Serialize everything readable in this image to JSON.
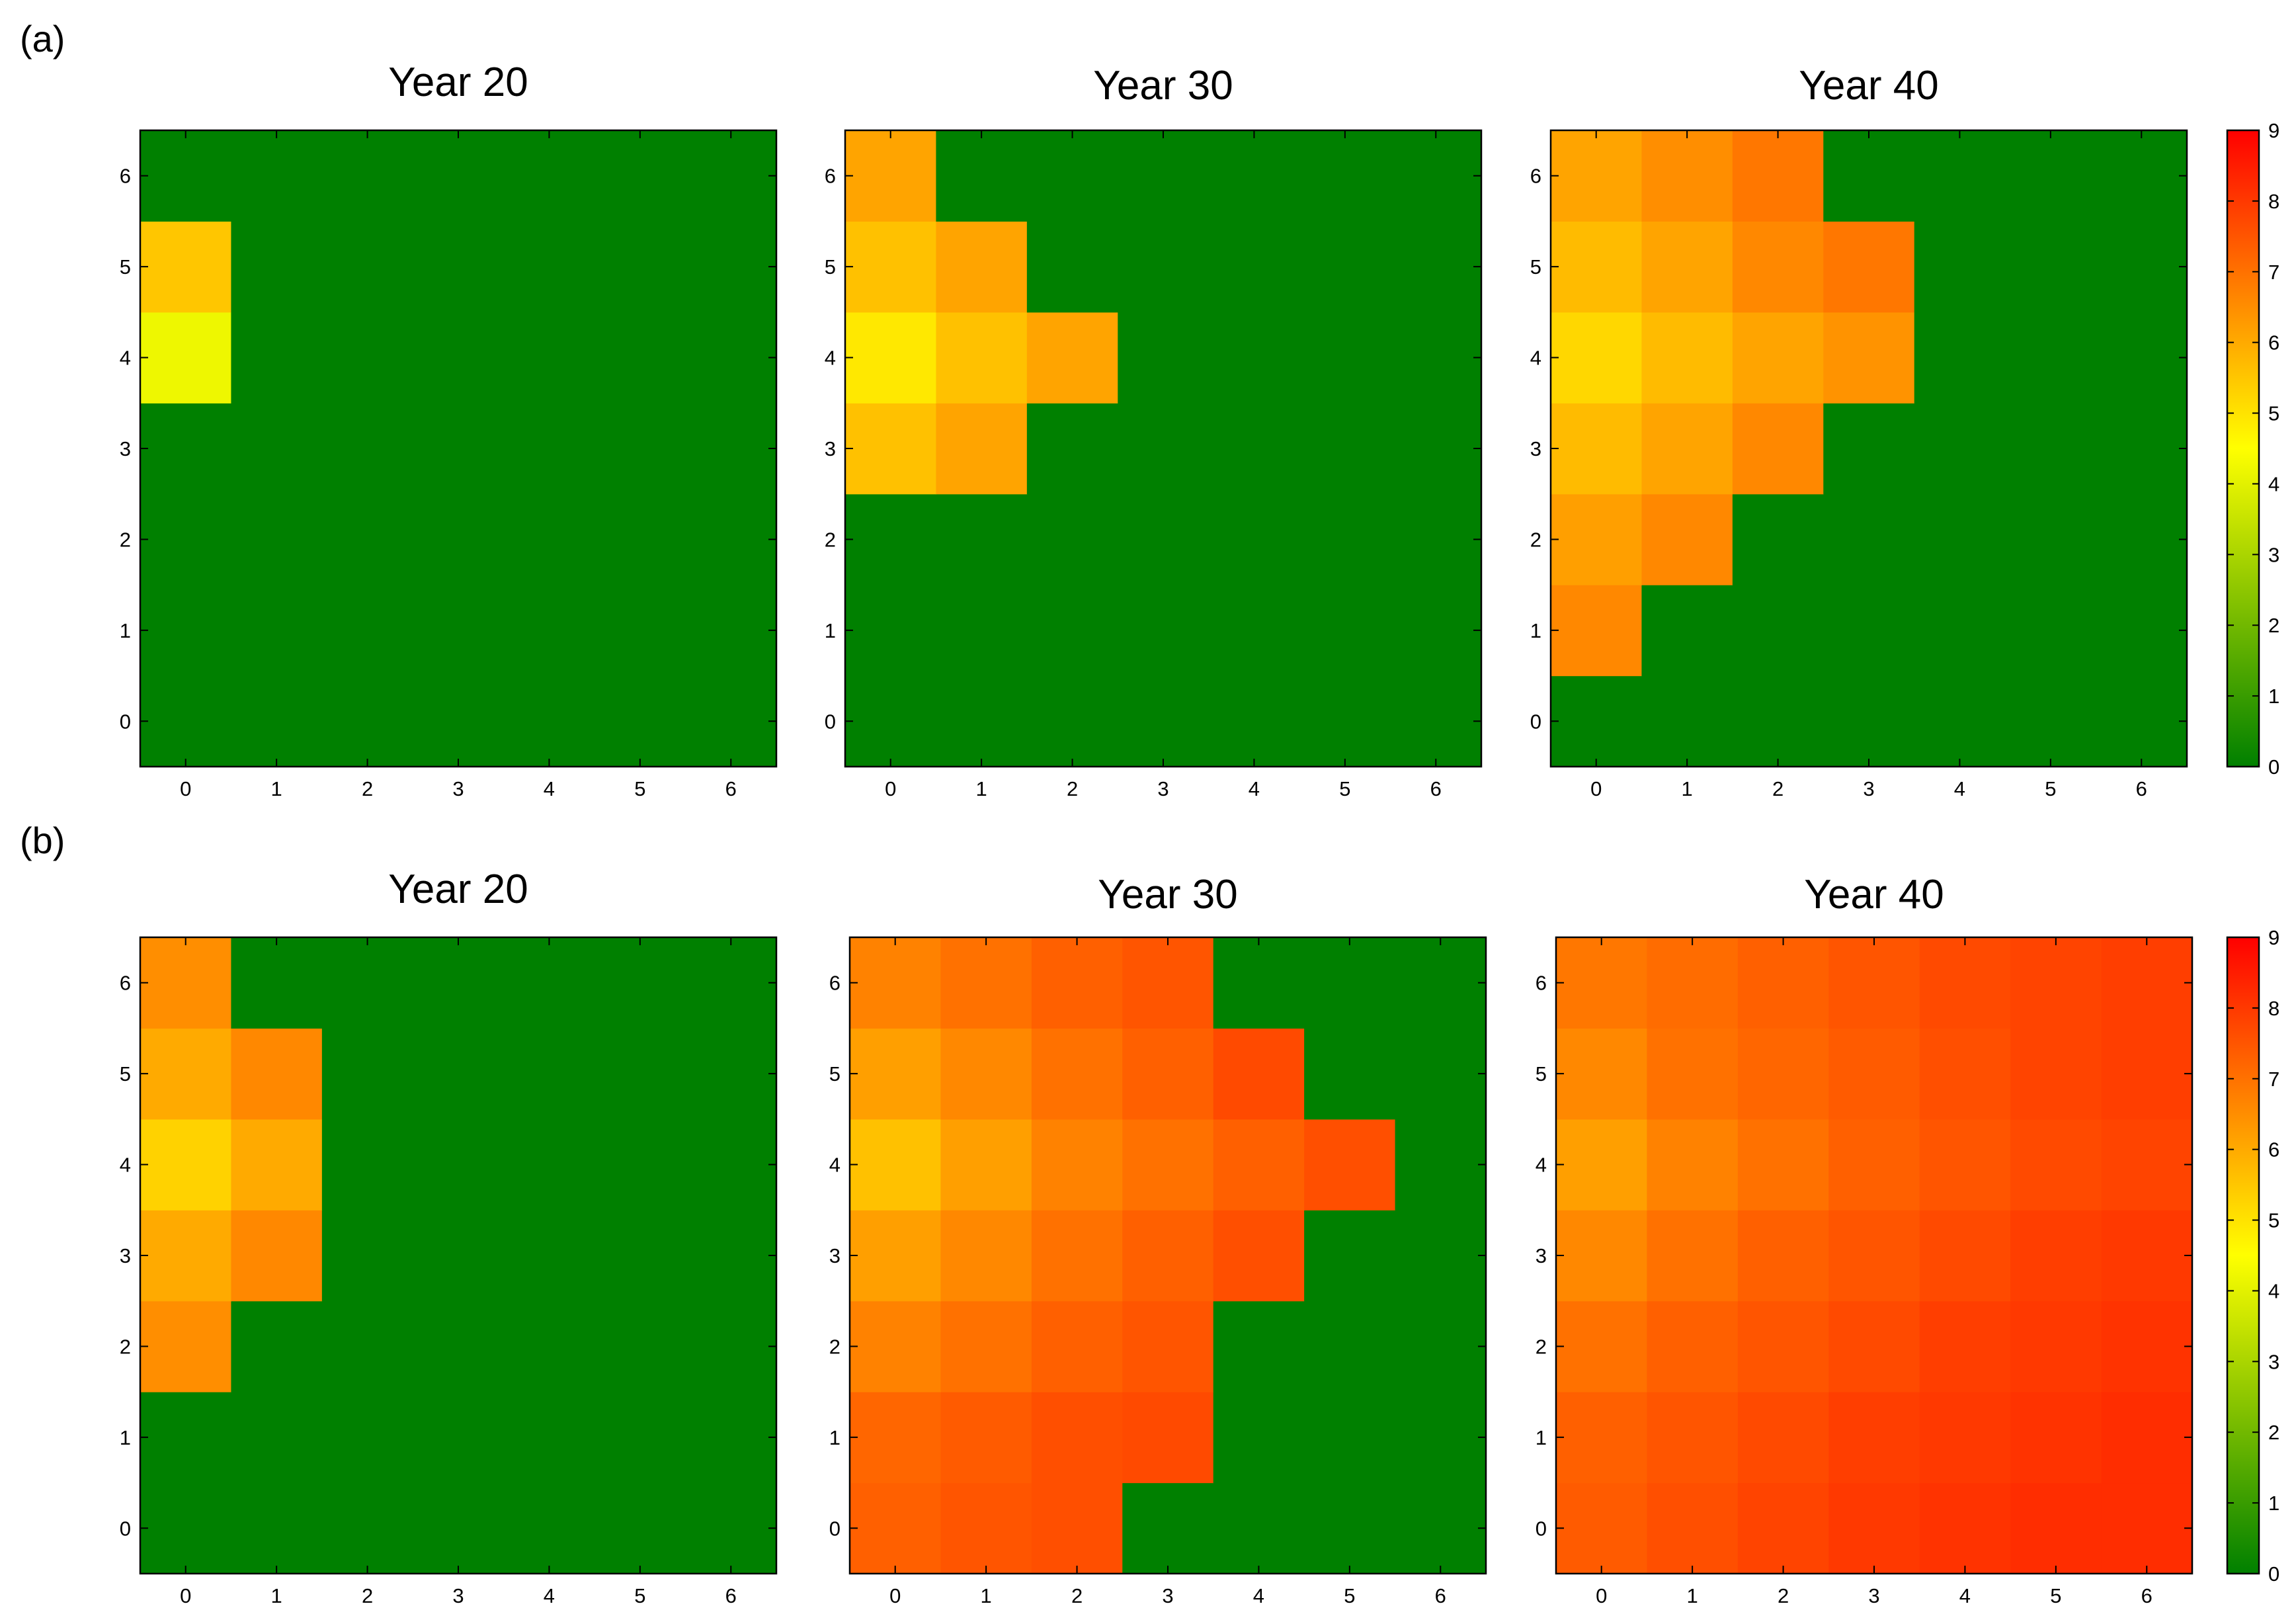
{
  "panel_labels": [
    "(a)",
    "(b)"
  ],
  "colorbar": {
    "min": 0,
    "max": 9,
    "ticks": [
      "0",
      "1",
      "2",
      "3",
      "4",
      "5",
      "6",
      "7",
      "8",
      "9"
    ],
    "colors": {
      "zero": "#008000",
      "four": "#ffff00",
      "nine": "#ff0000"
    }
  },
  "chart_data": [
    {
      "type": "heatmap",
      "row": "a",
      "title": "Year 20",
      "x_ticks": [
        "0",
        "1",
        "2",
        "3",
        "4",
        "5",
        "6"
      ],
      "y_ticks": [
        "0",
        "1",
        "2",
        "3",
        "4",
        "5",
        "6"
      ],
      "xlim": [
        -0.5,
        6.5
      ],
      "ylim": [
        -0.5,
        6.5
      ],
      "values": [
        [
          0,
          0,
          0,
          0,
          0,
          0,
          0
        ],
        [
          0,
          0,
          0,
          0,
          0,
          0,
          0
        ],
        [
          0,
          0,
          0,
          0,
          0,
          0,
          0
        ],
        [
          0,
          0,
          0,
          0,
          0,
          0,
          0
        ],
        [
          4.2,
          0,
          0,
          0,
          0,
          0,
          0
        ],
        [
          5.5,
          0,
          0,
          0,
          0,
          0,
          0
        ],
        [
          0,
          0,
          0,
          0,
          0,
          0,
          0
        ]
      ]
    },
    {
      "type": "heatmap",
      "row": "a",
      "title": "Year 30",
      "x_ticks": [
        "0",
        "1",
        "2",
        "3",
        "4",
        "5",
        "6"
      ],
      "y_ticks": [
        "0",
        "1",
        "2",
        "3",
        "4",
        "5",
        "6"
      ],
      "xlim": [
        -0.5,
        6.5
      ],
      "ylim": [
        -0.5,
        6.5
      ],
      "values": [
        [
          0,
          0,
          0,
          0,
          0,
          0,
          0
        ],
        [
          0,
          0,
          0,
          0,
          0,
          0,
          0
        ],
        [
          0,
          0,
          0,
          0,
          0,
          0,
          0
        ],
        [
          5.6,
          6.1,
          0,
          0,
          0,
          0,
          0
        ],
        [
          4.9,
          5.6,
          6.1,
          0,
          0,
          0,
          0
        ],
        [
          5.6,
          6.1,
          0,
          0,
          0,
          0,
          0
        ],
        [
          6.1,
          0,
          0,
          0,
          0,
          0,
          0
        ]
      ]
    },
    {
      "type": "heatmap",
      "row": "a",
      "title": "Year 40",
      "x_ticks": [
        "0",
        "1",
        "2",
        "3",
        "4",
        "5",
        "6"
      ],
      "y_ticks": [
        "0",
        "1",
        "2",
        "3",
        "4",
        "5",
        "6"
      ],
      "xlim": [
        -0.5,
        6.5
      ],
      "ylim": [
        -0.5,
        6.5
      ],
      "values": [
        [
          0,
          0,
          0,
          0,
          0,
          0,
          0
        ],
        [
          6.6,
          0,
          0,
          0,
          0,
          0,
          0
        ],
        [
          6.2,
          6.6,
          0,
          0,
          0,
          0,
          0
        ],
        [
          5.7,
          6.1,
          6.6,
          0,
          0,
          0,
          0
        ],
        [
          5.2,
          5.7,
          6.1,
          6.4,
          0,
          0,
          0
        ],
        [
          5.7,
          6.1,
          6.6,
          6.9,
          0,
          0,
          0
        ],
        [
          6.1,
          6.5,
          6.9,
          0,
          0,
          0,
          0
        ]
      ]
    },
    {
      "type": "heatmap",
      "row": "b",
      "title": "Year 20",
      "x_ticks": [
        "0",
        "1",
        "2",
        "3",
        "4",
        "5",
        "6"
      ],
      "y_ticks": [
        "0",
        "1",
        "2",
        "3",
        "4",
        "5",
        "6"
      ],
      "xlim": [
        -0.5,
        6.5
      ],
      "ylim": [
        -0.5,
        6.5
      ],
      "values": [
        [
          0,
          0,
          0,
          0,
          0,
          0,
          0
        ],
        [
          0,
          0,
          0,
          0,
          0,
          0,
          0
        ],
        [
          6.5,
          0,
          0,
          0,
          0,
          0,
          0
        ],
        [
          6.0,
          6.6,
          0,
          0,
          0,
          0,
          0
        ],
        [
          5.3,
          6.0,
          0,
          0,
          0,
          0,
          0
        ],
        [
          6.0,
          6.6,
          0,
          0,
          0,
          0,
          0
        ],
        [
          6.5,
          0,
          0,
          0,
          0,
          0,
          0
        ]
      ]
    },
    {
      "type": "heatmap",
      "row": "b",
      "title": "Year 30",
      "x_ticks": [
        "0",
        "1",
        "2",
        "3",
        "4",
        "5",
        "6"
      ],
      "y_ticks": [
        "0",
        "1",
        "2",
        "3",
        "4",
        "5",
        "6"
      ],
      "xlim": [
        -0.5,
        6.5
      ],
      "ylim": [
        -0.5,
        6.5
      ],
      "values": [
        [
          7.3,
          7.5,
          7.6,
          0,
          0,
          0,
          0
        ],
        [
          7.2,
          7.4,
          7.6,
          7.7,
          0,
          0,
          0
        ],
        [
          6.7,
          7.0,
          7.3,
          7.5,
          0,
          0,
          0
        ],
        [
          6.2,
          6.6,
          7.0,
          7.3,
          7.6,
          0,
          0
        ],
        [
          5.6,
          6.2,
          6.7,
          7.0,
          7.3,
          7.6,
          0
        ],
        [
          6.2,
          6.6,
          7.0,
          7.3,
          7.7,
          0,
          0
        ],
        [
          6.7,
          7.0,
          7.3,
          7.5,
          0,
          0,
          0
        ]
      ]
    },
    {
      "type": "heatmap",
      "row": "b",
      "title": "Year 40",
      "x_ticks": [
        "0",
        "1",
        "2",
        "3",
        "4",
        "5",
        "6"
      ],
      "y_ticks": [
        "0",
        "1",
        "2",
        "3",
        "4",
        "5",
        "6"
      ],
      "xlim": [
        -0.5,
        6.5
      ],
      "ylim": [
        -0.5,
        6.5
      ],
      "values": [
        [
          7.4,
          7.6,
          7.8,
          8.0,
          8.1,
          8.2,
          8.2
        ],
        [
          7.3,
          7.5,
          7.7,
          7.9,
          8.0,
          8.1,
          8.2
        ],
        [
          7.0,
          7.3,
          7.5,
          7.7,
          7.9,
          8.0,
          8.1
        ],
        [
          6.6,
          7.0,
          7.3,
          7.5,
          7.7,
          7.9,
          8.0
        ],
        [
          6.2,
          6.7,
          7.0,
          7.3,
          7.5,
          7.7,
          7.8
        ],
        [
          6.6,
          7.0,
          7.2,
          7.4,
          7.6,
          7.8,
          7.9
        ],
        [
          6.9,
          7.1,
          7.3,
          7.5,
          7.7,
          7.8,
          7.9
        ]
      ]
    }
  ]
}
